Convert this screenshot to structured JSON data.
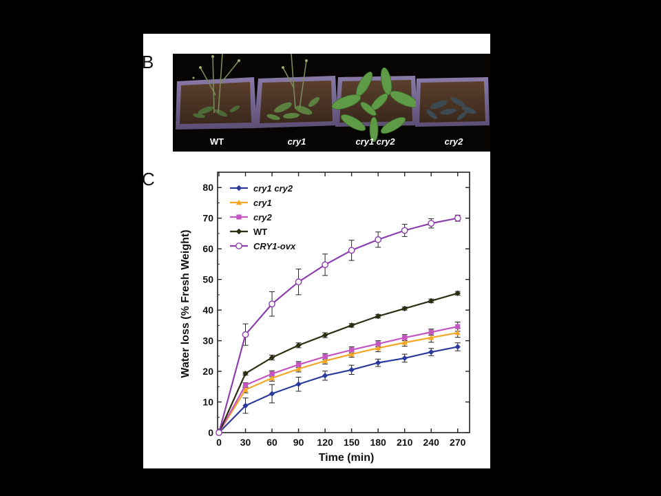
{
  "figure": {
    "panel_b_label": "B",
    "panel_c_label": "C"
  },
  "photo": {
    "description_labels": [
      "WT",
      "cry1",
      "cry1 cry2",
      "cry2"
    ],
    "label_italic": [
      false,
      true,
      true,
      true
    ]
  },
  "chart_data": {
    "type": "line",
    "xlabel": "Time (min)",
    "ylabel": "Water loss (% Fresh Weight)",
    "x": [
      0,
      30,
      60,
      90,
      120,
      150,
      180,
      210,
      240,
      270
    ],
    "xlim": [
      0,
      285
    ],
    "ylim": [
      0,
      85
    ],
    "xticks": [
      0,
      30,
      60,
      90,
      120,
      150,
      180,
      210,
      240,
      270
    ],
    "yticks": [
      0,
      10,
      20,
      30,
      40,
      50,
      60,
      70,
      80
    ],
    "legend_position": "top-left",
    "grid": false,
    "series": [
      {
        "name": "cry1 cry2",
        "italic": true,
        "color": "#2b3a9c",
        "marker": "diamond",
        "values": [
          0,
          8.8,
          12.7,
          15.8,
          18.6,
          20.5,
          22.8,
          24.3,
          26.3,
          28.0
        ],
        "errors": [
          0,
          2.5,
          3.0,
          2.3,
          1.5,
          1.5,
          1.2,
          1.3,
          1.2,
          1.3
        ]
      },
      {
        "name": "cry1",
        "italic": true,
        "color": "#f5a623",
        "marker": "triangle",
        "values": [
          0,
          14.0,
          17.8,
          20.8,
          23.4,
          25.6,
          27.6,
          29.4,
          31.0,
          32.6
        ],
        "errors": [
          0,
          1.0,
          1.0,
          1.0,
          1.0,
          1.0,
          1.2,
          1.2,
          1.5,
          1.5
        ]
      },
      {
        "name": "cry2",
        "italic": true,
        "color": "#c356c0",
        "marker": "square",
        "values": [
          0,
          15.5,
          19.2,
          22.2,
          24.8,
          27.0,
          29.0,
          31.0,
          32.8,
          34.6
        ],
        "errors": [
          0,
          0.8,
          1.0,
          1.0,
          1.0,
          1.0,
          1.0,
          1.0,
          1.0,
          1.5
        ]
      },
      {
        "name": "WT",
        "italic": false,
        "color": "#2d2d12",
        "marker": "diamond",
        "values": [
          0,
          19.3,
          24.5,
          28.5,
          31.8,
          35.0,
          38.0,
          40.5,
          43.0,
          45.5
        ],
        "errors": [
          0,
          0.5,
          0.8,
          0.8,
          0.8,
          0.6,
          0.6,
          0.5,
          0.6,
          0.6
        ]
      },
      {
        "name": "CRY1-ovx",
        "italic": true,
        "color": "#8b3fae",
        "marker": "circle",
        "values": [
          0,
          32.0,
          42.0,
          49.2,
          54.8,
          59.5,
          63.0,
          66.0,
          68.3,
          70.0
        ],
        "errors": [
          0,
          3.5,
          4.0,
          4.2,
          3.5,
          3.3,
          2.5,
          2.0,
          1.5,
          1.0
        ]
      }
    ]
  }
}
